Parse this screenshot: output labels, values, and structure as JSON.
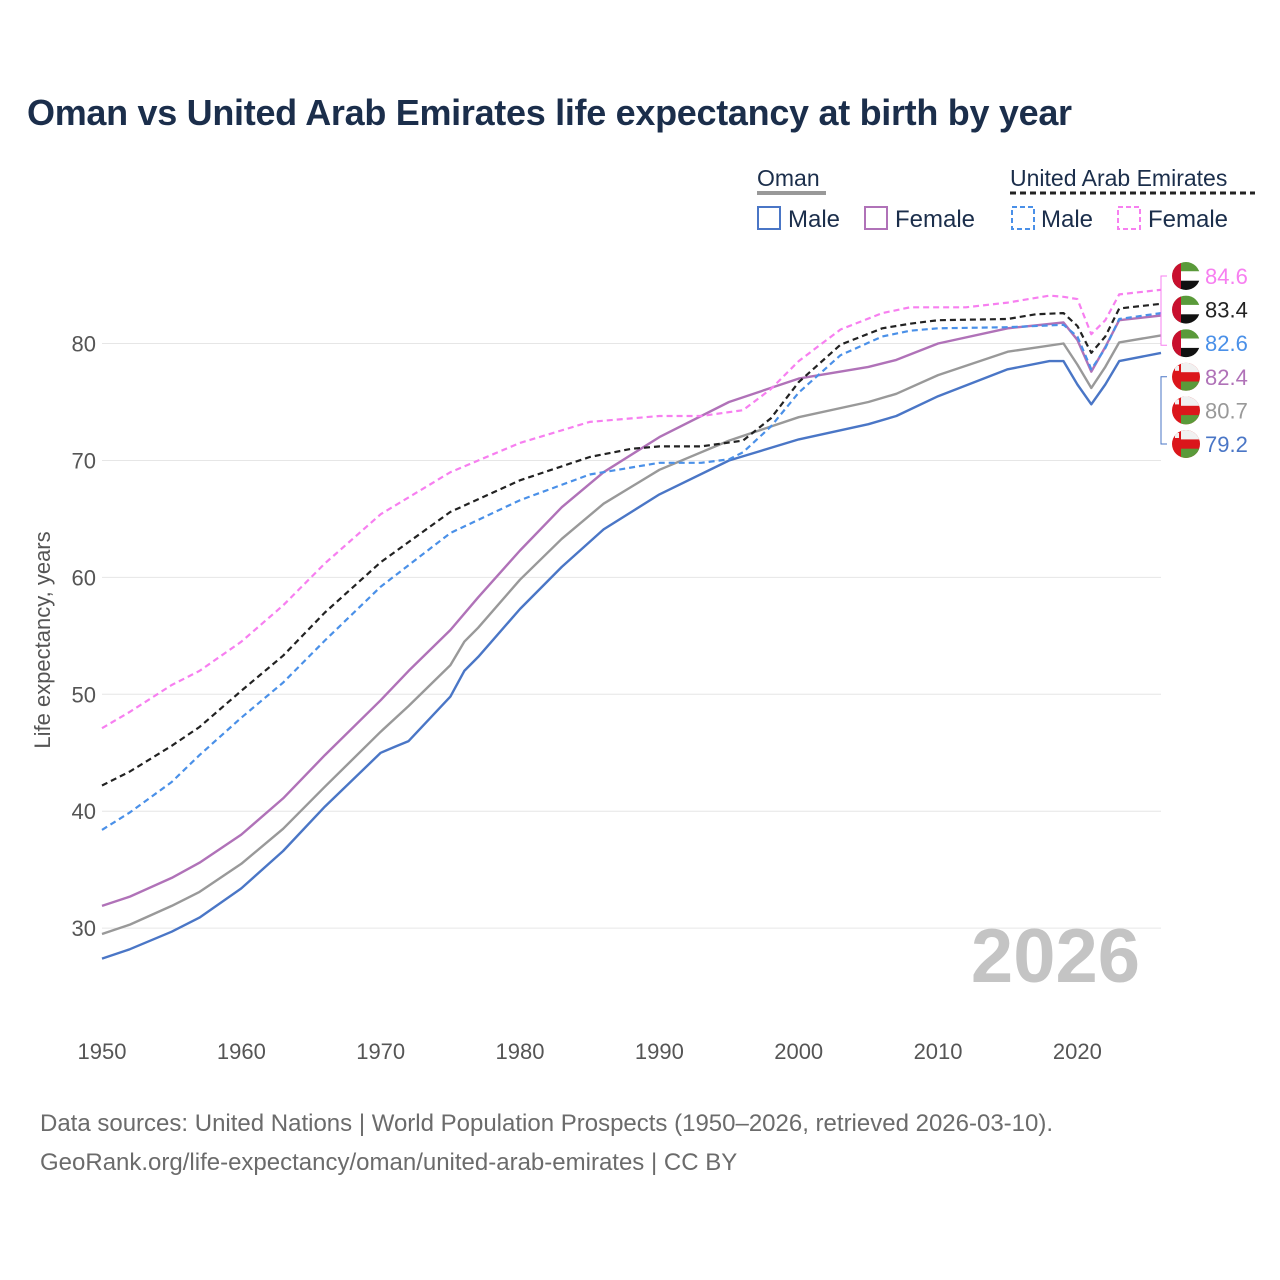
{
  "chart_data": {
    "type": "line",
    "title": "Oman vs United Arab Emirates life expectancy at birth by year",
    "xlabel": "",
    "ylabel": "Life expectancy, years",
    "xlim": [
      1950,
      2026
    ],
    "ylim": [
      23,
      88
    ],
    "x_ticks": [
      1950,
      1960,
      1970,
      1980,
      1990,
      2000,
      2010,
      2020
    ],
    "y_ticks": [
      30,
      40,
      50,
      60,
      70,
      80
    ],
    "grid": true,
    "watermark_year": "2026",
    "legend": {
      "groups": [
        {
          "name": "Oman",
          "entries": [
            "Male",
            "Female"
          ]
        },
        {
          "name": "United Arab Emirates",
          "entries": [
            "Male",
            "Female"
          ]
        }
      ]
    },
    "series": [
      {
        "name": "United Arab Emirates Female",
        "country": "United Arab Emirates",
        "sex": "Female",
        "color": "#f77ff0",
        "dashed": true,
        "end_label": "84.6",
        "points": [
          [
            1950,
            47.1
          ],
          [
            1952,
            48.5
          ],
          [
            1955,
            50.8
          ],
          [
            1957,
            52.0
          ],
          [
            1960,
            54.5
          ],
          [
            1963,
            57.6
          ],
          [
            1966,
            61.2
          ],
          [
            1970,
            65.4
          ],
          [
            1975,
            69.0
          ],
          [
            1980,
            71.5
          ],
          [
            1985,
            73.3
          ],
          [
            1990,
            73.8
          ],
          [
            1993,
            73.8
          ],
          [
            1996,
            74.3
          ],
          [
            1998,
            76.1
          ],
          [
            2000,
            78.5
          ],
          [
            2003,
            81.2
          ],
          [
            2006,
            82.6
          ],
          [
            2008,
            83.1
          ],
          [
            2012,
            83.1
          ],
          [
            2015,
            83.5
          ],
          [
            2018,
            84.1
          ],
          [
            2019,
            84.0
          ],
          [
            2020,
            83.8
          ],
          [
            2021,
            80.8
          ],
          [
            2022,
            82.0
          ],
          [
            2023,
            84.2
          ],
          [
            2026,
            84.6
          ]
        ]
      },
      {
        "name": "United Arab Emirates Both sexes",
        "country": "United Arab Emirates",
        "sex": "Both",
        "color": "#222222",
        "dashed": true,
        "end_label": "83.4",
        "points": [
          [
            1950,
            42.2
          ],
          [
            1952,
            43.4
          ],
          [
            1955,
            45.6
          ],
          [
            1957,
            47.2
          ],
          [
            1960,
            50.3
          ],
          [
            1963,
            53.3
          ],
          [
            1966,
            57.0
          ],
          [
            1970,
            61.3
          ],
          [
            1975,
            65.6
          ],
          [
            1980,
            68.3
          ],
          [
            1985,
            70.3
          ],
          [
            1988,
            71.0
          ],
          [
            1990,
            71.2
          ],
          [
            1993,
            71.2
          ],
          [
            1996,
            71.7
          ],
          [
            1998,
            73.6
          ],
          [
            2000,
            76.7
          ],
          [
            2003,
            79.9
          ],
          [
            2006,
            81.3
          ],
          [
            2008,
            81.7
          ],
          [
            2010,
            82.0
          ],
          [
            2015,
            82.1
          ],
          [
            2017,
            82.5
          ],
          [
            2019,
            82.6
          ],
          [
            2020,
            81.5
          ],
          [
            2021,
            79.2
          ],
          [
            2022,
            80.6
          ],
          [
            2023,
            83.0
          ],
          [
            2026,
            83.4
          ]
        ]
      },
      {
        "name": "United Arab Emirates Male",
        "country": "United Arab Emirates",
        "sex": "Male",
        "color": "#4a90e8",
        "dashed": true,
        "end_label": "82.6",
        "points": [
          [
            1950,
            38.4
          ],
          [
            1952,
            39.9
          ],
          [
            1955,
            42.5
          ],
          [
            1957,
            44.8
          ],
          [
            1960,
            48.0
          ],
          [
            1963,
            51.0
          ],
          [
            1966,
            54.6
          ],
          [
            1970,
            59.2
          ],
          [
            1975,
            63.8
          ],
          [
            1980,
            66.6
          ],
          [
            1985,
            68.8
          ],
          [
            1990,
            69.8
          ],
          [
            1993,
            69.8
          ],
          [
            1995,
            70.1
          ],
          [
            1996,
            70.7
          ],
          [
            1998,
            72.9
          ],
          [
            2000,
            75.8
          ],
          [
            2003,
            79.0
          ],
          [
            2006,
            80.6
          ],
          [
            2008,
            81.1
          ],
          [
            2010,
            81.3
          ],
          [
            2015,
            81.4
          ],
          [
            2019,
            81.6
          ],
          [
            2020,
            80.6
          ],
          [
            2021,
            77.8
          ],
          [
            2022,
            79.6
          ],
          [
            2023,
            82.1
          ],
          [
            2026,
            82.6
          ]
        ]
      },
      {
        "name": "Oman Female",
        "country": "Oman",
        "sex": "Female",
        "color": "#b072b8",
        "dashed": false,
        "end_label": "82.4",
        "points": [
          [
            1950,
            31.9
          ],
          [
            1952,
            32.7
          ],
          [
            1955,
            34.3
          ],
          [
            1957,
            35.6
          ],
          [
            1960,
            38.0
          ],
          [
            1963,
            41.1
          ],
          [
            1966,
            44.8
          ],
          [
            1970,
            49.5
          ],
          [
            1972,
            52.0
          ],
          [
            1975,
            55.5
          ],
          [
            1977,
            58.3
          ],
          [
            1980,
            62.3
          ],
          [
            1983,
            66.0
          ],
          [
            1986,
            69.0
          ],
          [
            1990,
            72.0
          ],
          [
            1995,
            75.0
          ],
          [
            2000,
            77.0
          ],
          [
            2005,
            78.0
          ],
          [
            2007,
            78.6
          ],
          [
            2010,
            80.0
          ],
          [
            2015,
            81.3
          ],
          [
            2019,
            81.8
          ],
          [
            2020,
            80.3
          ],
          [
            2021,
            77.6
          ],
          [
            2022,
            79.7
          ],
          [
            2023,
            82.0
          ],
          [
            2026,
            82.4
          ]
        ]
      },
      {
        "name": "Oman Both sexes",
        "country": "Oman",
        "sex": "Both",
        "color": "#999999",
        "dashed": false,
        "end_label": "80.7",
        "points": [
          [
            1950,
            29.5
          ],
          [
            1952,
            30.3
          ],
          [
            1955,
            31.9
          ],
          [
            1957,
            33.1
          ],
          [
            1960,
            35.5
          ],
          [
            1963,
            38.5
          ],
          [
            1966,
            42.1
          ],
          [
            1970,
            46.8
          ],
          [
            1972,
            49.0
          ],
          [
            1975,
            52.5
          ],
          [
            1976,
            54.5
          ],
          [
            1977,
            55.7
          ],
          [
            1980,
            59.8
          ],
          [
            1983,
            63.3
          ],
          [
            1986,
            66.3
          ],
          [
            1990,
            69.2
          ],
          [
            1995,
            71.7
          ],
          [
            2000,
            73.7
          ],
          [
            2005,
            75.0
          ],
          [
            2007,
            75.7
          ],
          [
            2010,
            77.3
          ],
          [
            2015,
            79.3
          ],
          [
            2019,
            80.0
          ],
          [
            2020,
            78.2
          ],
          [
            2021,
            76.2
          ],
          [
            2022,
            78.0
          ],
          [
            2023,
            80.1
          ],
          [
            2026,
            80.7
          ]
        ]
      },
      {
        "name": "Oman Male",
        "country": "Oman",
        "sex": "Male",
        "color": "#4a76c6",
        "dashed": false,
        "end_label": "79.2",
        "points": [
          [
            1950,
            27.4
          ],
          [
            1952,
            28.2
          ],
          [
            1955,
            29.7
          ],
          [
            1957,
            30.9
          ],
          [
            1960,
            33.4
          ],
          [
            1963,
            36.6
          ],
          [
            1966,
            40.4
          ],
          [
            1970,
            45.0
          ],
          [
            1971,
            45.5
          ],
          [
            1972,
            46.0
          ],
          [
            1975,
            49.8
          ],
          [
            1976,
            52.0
          ],
          [
            1977,
            53.2
          ],
          [
            1980,
            57.3
          ],
          [
            1983,
            60.9
          ],
          [
            1986,
            64.1
          ],
          [
            1990,
            67.1
          ],
          [
            1995,
            70.0
          ],
          [
            2000,
            71.8
          ],
          [
            2005,
            73.1
          ],
          [
            2007,
            73.8
          ],
          [
            2010,
            75.5
          ],
          [
            2015,
            77.8
          ],
          [
            2018,
            78.5
          ],
          [
            2019,
            78.5
          ],
          [
            2020,
            76.5
          ],
          [
            2021,
            74.8
          ],
          [
            2022,
            76.5
          ],
          [
            2023,
            78.5
          ],
          [
            2026,
            79.2
          ]
        ]
      }
    ]
  },
  "footer": {
    "line1": "Data sources: United Nations | World Population Prospects (1950–2026, retrieved 2026-03-10).",
    "line2": "GeoRank.org/life-expectancy/oman/united-arab-emirates | CC BY"
  }
}
